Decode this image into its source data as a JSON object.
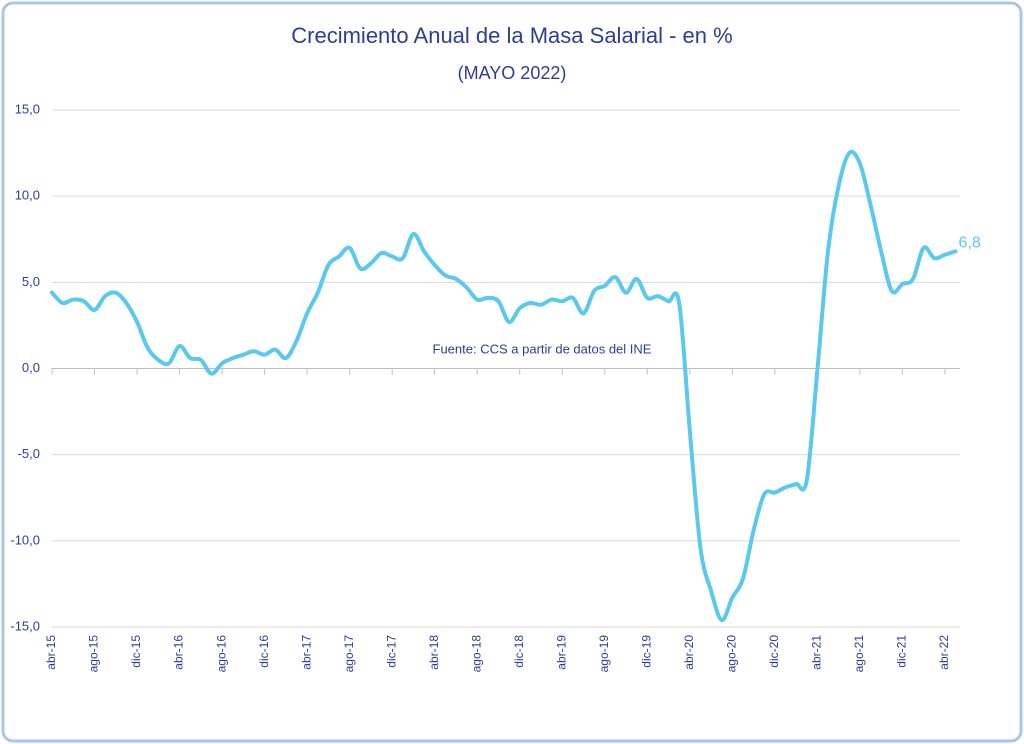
{
  "chart_data": {
    "type": "line",
    "title": "Crecimiento Anual de la Masa Salarial - en %",
    "subtitle": "(MAYO 2022)",
    "annotation": "Fuente: CCS a partir de datos del INE",
    "categories": [
      "abr-15",
      null,
      null,
      null,
      "ago-15",
      null,
      null,
      null,
      "dic-15",
      null,
      null,
      null,
      "abr-16",
      null,
      null,
      null,
      "ago-16",
      null,
      null,
      null,
      "dic-16",
      null,
      null,
      null,
      "abr-17",
      null,
      null,
      null,
      "ago-17",
      null,
      null,
      null,
      "dic-17",
      null,
      null,
      null,
      "abr-18",
      null,
      null,
      null,
      "ago-18",
      null,
      null,
      null,
      "dic-18",
      null,
      null,
      null,
      "abr-19",
      null,
      null,
      null,
      "ago-19",
      null,
      null,
      null,
      "dic-19",
      null,
      null,
      null,
      "abr-20",
      null,
      null,
      null,
      "ago-20",
      null,
      null,
      null,
      "dic-20",
      null,
      null,
      null,
      "abr-21",
      null,
      null,
      null,
      "ago-21",
      null,
      null,
      null,
      "dic-21",
      null,
      null,
      null,
      "abr-22",
      null
    ],
    "values": [
      4.4,
      3.8,
      4.0,
      3.9,
      3.4,
      4.2,
      4.4,
      3.8,
      2.7,
      1.2,
      0.5,
      0.3,
      1.3,
      0.6,
      0.5,
      -0.3,
      0.3,
      0.6,
      0.8,
      1.0,
      0.8,
      1.1,
      0.6,
      1.6,
      3.2,
      4.4,
      6.0,
      6.5,
      7.0,
      5.8,
      6.1,
      6.7,
      6.5,
      6.4,
      7.8,
      6.8,
      6.0,
      5.4,
      5.2,
      4.7,
      4.0,
      4.1,
      3.9,
      2.7,
      3.5,
      3.8,
      3.7,
      4.0,
      3.9,
      4.1,
      3.2,
      4.5,
      4.8,
      5.3,
      4.4,
      5.2,
      4.1,
      4.2,
      3.9,
      3.8,
      -3.6,
      -10.4,
      -12.9,
      -14.6,
      -13.3,
      -12.2,
      -9.4,
      -7.3,
      -7.2,
      -6.9,
      -6.7,
      -6.5,
      -0.1,
      6.8,
      10.6,
      12.5,
      11.9,
      9.5,
      6.8,
      4.5,
      4.9,
      5.2,
      7.0,
      6.4,
      6.6,
      6.8
    ],
    "value_labels": [
      null,
      null,
      null,
      null,
      null,
      null,
      null,
      null,
      null,
      null,
      null,
      null,
      null,
      null,
      null,
      null,
      null,
      null,
      null,
      null,
      null,
      null,
      null,
      null,
      null,
      null,
      null,
      null,
      null,
      null,
      null,
      null,
      null,
      null,
      null,
      null,
      null,
      null,
      null,
      null,
      null,
      null,
      null,
      null,
      null,
      null,
      null,
      null,
      null,
      null,
      null,
      null,
      null,
      null,
      null,
      null,
      null,
      null,
      null,
      null,
      null,
      null,
      null,
      null,
      null,
      null,
      null,
      null,
      null,
      null,
      null,
      null,
      null,
      null,
      null,
      null,
      null,
      null,
      null,
      null,
      null,
      null,
      null,
      null,
      null,
      "6,8"
    ],
    "color": "#5bc8ee",
    "ylim": [
      -15,
      15
    ],
    "yticks": [
      {
        "value": -15,
        "label": "-15,0"
      },
      {
        "value": -10,
        "label": "-10,0"
      },
      {
        "value": -5,
        "label": "-5,0"
      },
      {
        "value": 0,
        "label": "0,0"
      },
      {
        "value": 5,
        "label": "5,0"
      },
      {
        "value": 10,
        "label": "10,0"
      },
      {
        "value": 15,
        "label": "15,0"
      }
    ],
    "grid": true
  }
}
